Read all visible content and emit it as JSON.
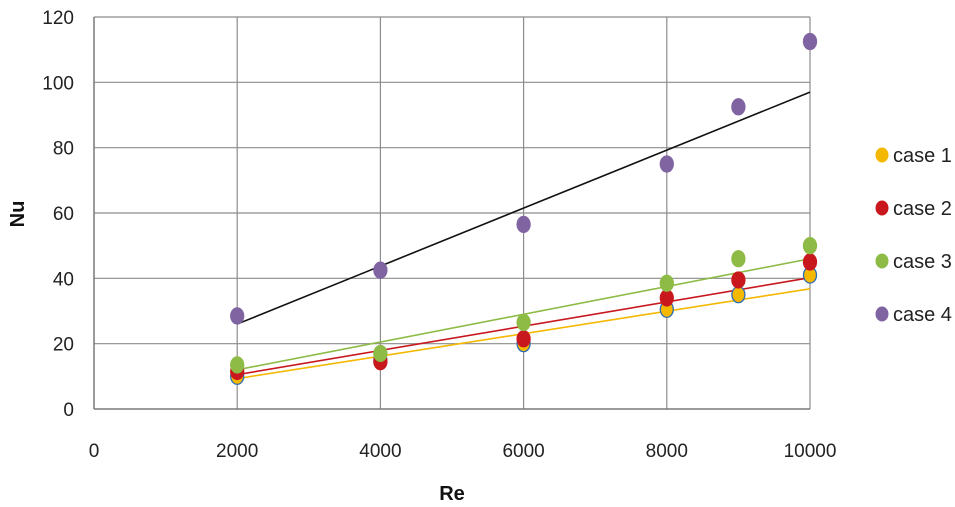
{
  "chart_data": {
    "type": "scatter",
    "title": "",
    "xlabel": "Re",
    "ylabel": "Nu",
    "xlim": [
      0,
      10000
    ],
    "ylim": [
      0,
      120
    ],
    "xticks": [
      0,
      2000,
      4000,
      6000,
      8000,
      10000
    ],
    "yticks": [
      0,
      20,
      40,
      60,
      80,
      100,
      120
    ],
    "x_tick_labels": [
      "0",
      "2000",
      "4000",
      "6000",
      "8000",
      "10000"
    ],
    "y_tick_labels": [
      "0",
      "20",
      "40",
      "60",
      "80",
      "100",
      "120"
    ],
    "grid": true,
    "legend_position": "right",
    "series": [
      {
        "name": "case 1",
        "color": "#F5B800",
        "edge": "#2E6DB4",
        "x": [
          2000,
          4000,
          6000,
          8000,
          9000,
          10000
        ],
        "y": [
          10,
          15,
          20,
          30.5,
          35,
          41
        ],
        "trendline": [
          [
            2000,
            9.3
          ],
          [
            10000,
            36.8
          ]
        ]
      },
      {
        "name": "case 2",
        "color": "#C8181E",
        "edge": "#C8181E",
        "x": [
          2000,
          4000,
          6000,
          8000,
          9000,
          10000
        ],
        "y": [
          11.5,
          14.5,
          21.5,
          34,
          39.5,
          45
        ],
        "trendline": [
          [
            2000,
            10.5
          ],
          [
            10000,
            40.2
          ]
        ]
      },
      {
        "name": "case 3",
        "color": "#8DBB45",
        "edge": "#8DBB45",
        "x": [
          2000,
          4000,
          6000,
          8000,
          9000,
          10000
        ],
        "y": [
          13.5,
          17,
          26.5,
          38.5,
          46,
          50
        ],
        "trendline": [
          [
            2000,
            12
          ],
          [
            10000,
            46
          ]
        ]
      },
      {
        "name": "case 4",
        "color": "#8064A2",
        "edge": "#8064A2",
        "x": [
          2000,
          4000,
          6000,
          8000,
          9000,
          10000
        ],
        "y": [
          28.5,
          42.5,
          56.5,
          75,
          92.5,
          112.5
        ],
        "trendline_color": "#111111",
        "trendline": [
          [
            2000,
            26
          ],
          [
            10000,
            97
          ]
        ]
      }
    ]
  }
}
